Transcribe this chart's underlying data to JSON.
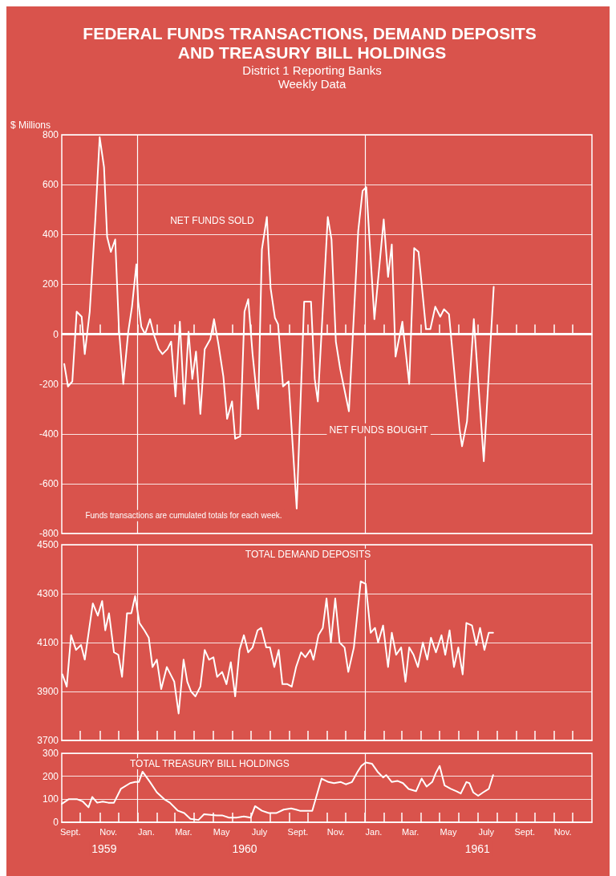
{
  "chart_data": [
    {
      "type": "line",
      "title": "FEDERAL FUNDS TRANSACTIONS, DEMAND DEPOSITS AND TREASURY BILL HOLDINGS",
      "subtitle": "District 1 Reporting Banks\nWeekly Data",
      "ylabel": "$ Millions",
      "x": [
        "1959-09-05",
        "1959-09-11",
        "1959-09-18",
        "1959-09-25",
        "1959-10-03",
        "1959-10-08",
        "1959-10-16",
        "1959-10-25",
        "1959-11-01",
        "1959-11-08",
        "1959-11-13",
        "1959-11-19",
        "1959-11-26",
        "1959-12-02",
        "1959-12-09",
        "1959-12-17",
        "1959-12-23",
        "1959-12-30",
        "1960-01-02",
        "1960-01-07",
        "1960-01-13",
        "1960-01-21",
        "1960-01-27",
        "1960-02-04",
        "1960-02-10",
        "1960-02-18",
        "1960-02-24",
        "1960-03-02",
        "1960-03-09",
        "1960-03-16",
        "1960-03-23",
        "1960-03-29",
        "1960-04-04",
        "1960-04-11",
        "1960-04-18",
        "1960-04-27",
        "1960-05-03",
        "1960-05-10",
        "1960-05-18",
        "1960-05-24",
        "1960-06-01",
        "1960-06-06",
        "1960-06-14",
        "1960-06-21",
        "1960-06-27",
        "1960-07-04",
        "1960-07-13",
        "1960-07-19",
        "1960-07-27",
        "1960-08-02",
        "1960-08-09",
        "1960-08-14",
        "1960-08-22",
        "1960-08-31",
        "1960-09-13",
        "1960-09-25",
        "1960-10-06",
        "1960-10-12",
        "1960-10-17",
        "1960-11-02",
        "1960-11-08",
        "1960-11-15",
        "1960-11-22",
        "1960-12-06",
        "1960-12-21",
        "1960-12-28",
        "1961-01-03",
        "1961-01-16",
        "1961-01-31",
        "1961-02-07",
        "1961-02-13",
        "1961-02-19",
        "1961-03-02",
        "1961-03-13",
        "1961-03-21",
        "1961-03-28",
        "1961-04-09",
        "1961-04-16",
        "1961-04-24",
        "1961-05-02",
        "1961-05-08",
        "1961-05-16",
        "1961-06-02",
        "1961-06-06",
        "1961-06-14",
        "1961-06-25",
        "1961-07-11",
        "1961-07-27"
      ],
      "series": [
        {
          "color": "#ffffff",
          "values": [
            -120,
            -210,
            -190,
            90,
            70,
            -80,
            90,
            460,
            790,
            670,
            390,
            330,
            380,
            20,
            -200,
            10,
            110,
            280,
            130,
            30,
            0,
            60,
            0,
            -60,
            -80,
            -60,
            -30,
            -250,
            50,
            -280,
            10,
            -180,
            -70,
            -320,
            -60,
            -20,
            60,
            -40,
            -170,
            -340,
            -270,
            -420,
            -410,
            90,
            140,
            -80,
            -300,
            340,
            470,
            185,
            65,
            40,
            -210,
            -190,
            -700,
            130,
            130,
            -180,
            -270,
            470,
            380,
            -30,
            -140,
            -310,
            415,
            575,
            590,
            60,
            460,
            230,
            360,
            -90,
            50,
            -200,
            345,
            330,
            20,
            20,
            110,
            70,
            100,
            80,
            -380,
            -450,
            -350,
            60,
            -510,
            190
          ]
        }
      ],
      "xlim": [
        "1959-09-01",
        "1962-01-01"
      ],
      "xticks": [
        {
          "value": "1959-10-01",
          "label": null
        },
        {
          "value": "1959-11-01",
          "label": null
        },
        {
          "value": "1959-12-01",
          "label": null
        },
        {
          "value": "1960-01-01",
          "label": null
        },
        {
          "value": "1960-02-01",
          "label": null
        },
        {
          "value": "1960-03-01",
          "label": null
        },
        {
          "value": "1960-04-01",
          "label": null
        },
        {
          "value": "1960-05-01",
          "label": null
        },
        {
          "value": "1960-06-01",
          "label": null
        },
        {
          "value": "1960-07-01",
          "label": null
        },
        {
          "value": "1960-08-01",
          "label": null
        },
        {
          "value": "1960-09-01",
          "label": null
        },
        {
          "value": "1960-10-01",
          "label": null
        },
        {
          "value": "1960-11-01",
          "label": null
        },
        {
          "value": "1960-12-01",
          "label": null
        },
        {
          "value": "1961-01-01",
          "label": null
        },
        {
          "value": "1961-02-01",
          "label": null
        },
        {
          "value": "1961-03-01",
          "label": null
        },
        {
          "value": "1961-04-01",
          "label": null
        },
        {
          "value": "1961-05-01",
          "label": null
        },
        {
          "value": "1961-06-01",
          "label": null
        },
        {
          "value": "1961-07-01",
          "label": null
        },
        {
          "value": "1961-08-01",
          "label": null
        },
        {
          "value": "1961-09-01",
          "label": null
        },
        {
          "value": "1961-10-01",
          "label": null
        },
        {
          "value": "1961-11-01",
          "label": null
        },
        {
          "value": "1961-12-01",
          "label": null
        }
      ],
      "ylim": [
        -800,
        800
      ],
      "yticks": [
        -800,
        -600,
        -400,
        -200,
        0,
        200,
        400,
        600,
        800
      ],
      "grid": "y",
      "tick_labels": "y",
      "ref_lines": [
        {
          "axis": "x",
          "value": "1960-01-01",
          "label": null
        },
        {
          "axis": "x",
          "value": "1961-01-01",
          "label": null
        },
        {
          "axis": "y",
          "value": 0,
          "label": null
        }
      ],
      "annotations": [
        "NET FUNDS SOLD",
        "NET FUNDS BOUGHT",
        "Funds transactions are cumulated totals for each week."
      ]
    },
    {
      "type": "line",
      "title": "TOTAL DEMAND DEPOSITS",
      "x": [
        "1959-09-02",
        "1959-09-09",
        "1959-09-16",
        "1959-09-24",
        "1959-10-02",
        "1959-10-08",
        "1959-10-21",
        "1959-10-29",
        "1959-11-05",
        "1959-11-10",
        "1959-11-16",
        "1959-11-24",
        "1959-12-01",
        "1959-12-07",
        "1959-12-15",
        "1959-12-22",
        "1959-12-28",
        "1960-01-04",
        "1960-01-12",
        "1960-01-19",
        "1960-01-25",
        "1960-02-01",
        "1960-02-08",
        "1960-02-17",
        "1960-02-23",
        "1960-02-29",
        "1960-03-07",
        "1960-03-15",
        "1960-03-21",
        "1960-03-27",
        "1960-04-03",
        "1960-04-11",
        "1960-04-18",
        "1960-04-25",
        "1960-05-02",
        "1960-05-08",
        "1960-05-16",
        "1960-05-23",
        "1960-05-30",
        "1960-06-06",
        "1960-06-13",
        "1960-06-20",
        "1960-06-27",
        "1960-07-04",
        "1960-07-12",
        "1960-07-18",
        "1960-07-26",
        "1960-08-01",
        "1960-08-08",
        "1960-08-15",
        "1960-08-21",
        "1960-08-29",
        "1960-09-05",
        "1960-09-12",
        "1960-09-20",
        "1960-09-27",
        "1960-10-05",
        "1960-10-10",
        "1960-10-18",
        "1960-10-25",
        "1960-10-31",
        "1960-11-07",
        "1960-11-14",
        "1960-11-21",
        "1960-11-29",
        "1960-12-05",
        "1960-12-14",
        "1960-12-25",
        "1961-01-02",
        "1961-01-10",
        "1961-01-17",
        "1961-01-22",
        "1961-01-30",
        "1961-02-07",
        "1961-02-13",
        "1961-02-20",
        "1961-02-28",
        "1961-03-07",
        "1961-03-13",
        "1961-03-20",
        "1961-03-27",
        "1961-04-04",
        "1961-04-11",
        "1961-04-17",
        "1961-04-25",
        "1961-05-04",
        "1961-05-10",
        "1961-05-17",
        "1961-05-24",
        "1961-05-31",
        "1961-06-07",
        "1961-06-13",
        "1961-06-22",
        "1961-06-29",
        "1961-07-05",
        "1961-07-12",
        "1961-07-19",
        "1961-07-26"
      ],
      "series": [
        {
          "color": "#ffffff",
          "values": [
            3970,
            3920,
            4130,
            4070,
            4090,
            4030,
            4260,
            4210,
            4270,
            4150,
            4220,
            4060,
            4050,
            3960,
            4220,
            4220,
            4290,
            4180,
            4150,
            4120,
            4000,
            4030,
            3910,
            4000,
            3970,
            3940,
            3810,
            4030,
            3940,
            3900,
            3880,
            3920,
            4070,
            4030,
            4040,
            3960,
            3980,
            3930,
            4020,
            3880,
            4070,
            4130,
            4060,
            4080,
            4150,
            4160,
            4080,
            4080,
            4000,
            4070,
            3930,
            3930,
            3920,
            4000,
            4060,
            4040,
            4070,
            4030,
            4130,
            4160,
            4280,
            4100,
            4280,
            4100,
            4080,
            3980,
            4080,
            4350,
            4340,
            4140,
            4160,
            4100,
            4170,
            4000,
            4140,
            4050,
            4080,
            3940,
            4080,
            4050,
            4000,
            4100,
            4030,
            4120,
            4060,
            4130,
            4050,
            4150,
            4000,
            4080,
            3970,
            4180,
            4170,
            4090,
            4160,
            4070,
            4140,
            4140
          ]
        }
      ],
      "xlim": [
        "1959-09-01",
        "1962-01-01"
      ],
      "xticks": [
        {
          "value": "1959-10-01",
          "label": null
        },
        {
          "value": "1959-11-01",
          "label": null
        },
        {
          "value": "1959-12-01",
          "label": null
        },
        {
          "value": "1960-01-01",
          "label": null
        },
        {
          "value": "1960-02-01",
          "label": null
        },
        {
          "value": "1960-03-01",
          "label": null
        },
        {
          "value": "1960-04-01",
          "label": null
        },
        {
          "value": "1960-05-01",
          "label": null
        },
        {
          "value": "1960-06-01",
          "label": null
        },
        {
          "value": "1960-07-01",
          "label": null
        },
        {
          "value": "1960-08-01",
          "label": null
        },
        {
          "value": "1960-09-01",
          "label": null
        },
        {
          "value": "1960-10-01",
          "label": null
        },
        {
          "value": "1960-11-01",
          "label": null
        },
        {
          "value": "1960-12-01",
          "label": null
        },
        {
          "value": "1961-01-01",
          "label": null
        },
        {
          "value": "1961-02-01",
          "label": null
        },
        {
          "value": "1961-03-01",
          "label": null
        },
        {
          "value": "1961-04-01",
          "label": null
        },
        {
          "value": "1961-05-01",
          "label": null
        },
        {
          "value": "1961-06-01",
          "label": null
        },
        {
          "value": "1961-07-01",
          "label": null
        },
        {
          "value": "1961-08-01",
          "label": null
        },
        {
          "value": "1961-09-01",
          "label": null
        },
        {
          "value": "1961-10-01",
          "label": null
        },
        {
          "value": "1961-11-01",
          "label": null
        },
        {
          "value": "1961-12-01",
          "label": null
        }
      ],
      "ylim": [
        3700,
        4500
      ],
      "yticks": [
        3700,
        3900,
        4100,
        4300,
        4500
      ],
      "grid": "y",
      "tick_labels": "y",
      "ref_lines": [
        {
          "axis": "x",
          "value": "1960-01-01",
          "label": null
        },
        {
          "axis": "x",
          "value": "1961-01-01",
          "label": null
        }
      ]
    },
    {
      "type": "line",
      "title": "TOTAL TREASURY BILL HOLDINGS",
      "x": [
        "1959-09-01",
        "1959-09-12",
        "1959-09-26",
        "1959-10-05",
        "1959-10-14",
        "1959-10-20",
        "1959-10-28",
        "1959-11-06",
        "1959-11-15",
        "1959-11-24",
        "1959-12-05",
        "1959-12-20",
        "1959-12-28",
        "1960-01-03",
        "1960-01-09",
        "1960-01-21",
        "1960-02-01",
        "1960-02-13",
        "1960-02-22",
        "1960-03-06",
        "1960-03-16",
        "1960-03-26",
        "1960-04-08",
        "1960-04-17",
        "1960-05-07",
        "1960-05-16",
        "1960-05-27",
        "1960-06-08",
        "1960-06-20",
        "1960-07-01",
        "1960-07-08",
        "1960-07-19",
        "1960-07-30",
        "1960-08-11",
        "1960-08-23",
        "1960-09-04",
        "1960-09-12",
        "1960-09-18",
        "1960-09-28",
        "1960-10-08",
        "1960-10-23",
        "1960-11-03",
        "1960-11-12",
        "1960-11-23",
        "1960-12-01",
        "1960-12-11",
        "1960-12-20",
        "1960-12-26",
        "1961-01-02",
        "1961-01-12",
        "1961-01-21",
        "1961-01-30",
        "1961-02-04",
        "1961-02-13",
        "1961-02-22",
        "1961-03-03",
        "1961-03-12",
        "1961-03-24",
        "1961-04-02",
        "1961-04-10",
        "1961-04-19",
        "1961-04-25",
        "1961-05-01",
        "1961-05-09",
        "1961-05-19",
        "1961-05-28",
        "1961-06-04",
        "1961-06-13",
        "1961-06-18",
        "1961-06-24",
        "1961-07-02",
        "1961-07-10",
        "1961-07-19",
        "1961-07-26"
      ],
      "series": [
        {
          "color": "#ffffff",
          "values": [
            80,
            100,
            100,
            90,
            65,
            110,
            85,
            90,
            85,
            85,
            145,
            170,
            175,
            175,
            220,
            175,
            130,
            100,
            85,
            50,
            40,
            15,
            10,
            35,
            30,
            30,
            20,
            20,
            25,
            20,
            70,
            50,
            40,
            40,
            55,
            60,
            55,
            50,
            50,
            50,
            190,
            175,
            170,
            175,
            165,
            175,
            220,
            245,
            260,
            255,
            220,
            195,
            205,
            175,
            180,
            170,
            145,
            135,
            190,
            155,
            175,
            215,
            245,
            160,
            145,
            135,
            125,
            175,
            170,
            130,
            115,
            130,
            145,
            205
          ]
        }
      ],
      "xlim": [
        "1959-09-01",
        "1962-01-01"
      ],
      "xticks": [
        {
          "value": "1959-09-15",
          "label": "Sept."
        },
        {
          "value": "1959-10-01",
          "label": null
        },
        {
          "value": "1959-11-01",
          "label": null
        },
        {
          "value": "1959-11-15",
          "label": "Nov."
        },
        {
          "value": "1959-12-01",
          "label": null
        },
        {
          "value": "1960-01-01",
          "label": null
        },
        {
          "value": "1960-01-15",
          "label": "Jan."
        },
        {
          "value": "1960-02-01",
          "label": null
        },
        {
          "value": "1960-03-01",
          "label": null
        },
        {
          "value": "1960-03-15",
          "label": "Mar."
        },
        {
          "value": "1960-04-01",
          "label": null
        },
        {
          "value": "1960-05-01",
          "label": null
        },
        {
          "value": "1960-05-15",
          "label": "May"
        },
        {
          "value": "1960-06-01",
          "label": null
        },
        {
          "value": "1960-07-01",
          "label": null
        },
        {
          "value": "1960-07-15",
          "label": "July"
        },
        {
          "value": "1960-08-01",
          "label": null
        },
        {
          "value": "1960-09-01",
          "label": null
        },
        {
          "value": "1960-09-15",
          "label": "Sept."
        },
        {
          "value": "1960-10-01",
          "label": null
        },
        {
          "value": "1960-11-01",
          "label": null
        },
        {
          "value": "1960-11-15",
          "label": "Nov."
        },
        {
          "value": "1960-12-01",
          "label": null
        },
        {
          "value": "1961-01-01",
          "label": null
        },
        {
          "value": "1961-01-15",
          "label": "Jan."
        },
        {
          "value": "1961-02-01",
          "label": null
        },
        {
          "value": "1961-03-01",
          "label": null
        },
        {
          "value": "1961-03-15",
          "label": "Mar."
        },
        {
          "value": "1961-04-01",
          "label": null
        },
        {
          "value": "1961-05-01",
          "label": null
        },
        {
          "value": "1961-05-15",
          "label": "May"
        },
        {
          "value": "1961-06-01",
          "label": null
        },
        {
          "value": "1961-07-01",
          "label": null
        },
        {
          "value": "1961-07-15",
          "label": "July"
        },
        {
          "value": "1961-08-01",
          "label": null
        },
        {
          "value": "1961-09-01",
          "label": null
        },
        {
          "value": "1961-09-15",
          "label": "Sept."
        },
        {
          "value": "1961-10-01",
          "label": null
        },
        {
          "value": "1961-11-01",
          "label": null
        },
        {
          "value": "1961-11-15",
          "label": "Nov."
        },
        {
          "value": "1961-12-01",
          "label": null
        }
      ],
      "ylim": [
        0,
        300
      ],
      "yticks": [
        0,
        100,
        200,
        300
      ],
      "grid": "y",
      "ref_lines": [
        {
          "axis": "x",
          "value": "1960-01-01",
          "label": null
        },
        {
          "axis": "x",
          "value": "1961-01-01",
          "label": null
        }
      ],
      "annotations": [
        "1959",
        "1960",
        "1961"
      ]
    }
  ]
}
